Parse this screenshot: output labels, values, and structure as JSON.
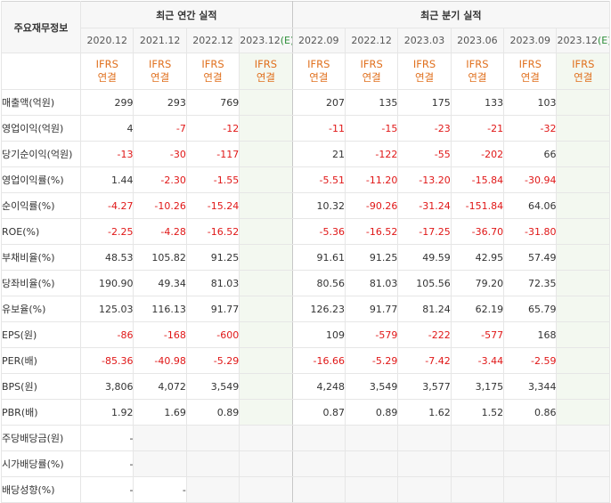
{
  "table": {
    "corner_label": "주요재무정보",
    "annual_group_label": "최근 연간 실적",
    "quarter_group_label": "최근 분기 실적",
    "annual_periods": [
      "2020.12",
      "2021.12",
      "2022.12"
    ],
    "annual_estimate_period": "2023.12",
    "quarter_periods": [
      "2022.09",
      "2022.12",
      "2023.03",
      "2023.06",
      "2023.09"
    ],
    "quarter_estimate_period": "2023.12",
    "estimate_marker": "(E)",
    "ifrs_line1": "IFRS",
    "ifrs_line2": "연결",
    "rows": [
      {
        "label": "매출액(억원)",
        "annual": [
          "299",
          "293",
          "769",
          ""
        ],
        "quarter": [
          "207",
          "135",
          "175",
          "133",
          "103",
          ""
        ]
      },
      {
        "label": "영업이익(억원)",
        "annual": [
          "4",
          "-7",
          "-12",
          ""
        ],
        "quarter": [
          "-11",
          "-15",
          "-23",
          "-21",
          "-32",
          ""
        ]
      },
      {
        "label": "당기순이익(억원)",
        "annual": [
          "-13",
          "-30",
          "-117",
          ""
        ],
        "quarter": [
          "21",
          "-122",
          "-55",
          "-202",
          "66",
          ""
        ]
      },
      {
        "label": "영업이익률(%)",
        "annual": [
          "1.44",
          "-2.30",
          "-1.55",
          ""
        ],
        "quarter": [
          "-5.51",
          "-11.20",
          "-13.20",
          "-15.84",
          "-30.94",
          ""
        ]
      },
      {
        "label": "순이익률(%)",
        "annual": [
          "-4.27",
          "-10.26",
          "-15.24",
          ""
        ],
        "quarter": [
          "10.32",
          "-90.26",
          "-31.24",
          "-151.84",
          "64.06",
          ""
        ]
      },
      {
        "label": "ROE(%)",
        "annual": [
          "-2.25",
          "-4.28",
          "-16.52",
          ""
        ],
        "quarter": [
          "-5.36",
          "-16.52",
          "-17.25",
          "-36.70",
          "-31.80",
          ""
        ]
      },
      {
        "label": "부채비율(%)",
        "annual": [
          "48.53",
          "105.82",
          "91.25",
          ""
        ],
        "quarter": [
          "91.61",
          "91.25",
          "49.59",
          "42.95",
          "57.49",
          ""
        ]
      },
      {
        "label": "당좌비율(%)",
        "annual": [
          "190.90",
          "49.34",
          "81.03",
          ""
        ],
        "quarter": [
          "80.56",
          "81.03",
          "105.56",
          "79.20",
          "72.35",
          ""
        ]
      },
      {
        "label": "유보율(%)",
        "annual": [
          "125.03",
          "116.13",
          "91.77",
          ""
        ],
        "quarter": [
          "126.23",
          "91.77",
          "81.24",
          "62.19",
          "65.79",
          ""
        ]
      },
      {
        "label": "EPS(원)",
        "annual": [
          "-86",
          "-168",
          "-600",
          ""
        ],
        "quarter": [
          "109",
          "-579",
          "-222",
          "-577",
          "168",
          ""
        ]
      },
      {
        "label": "PER(배)",
        "annual": [
          "-85.36",
          "-40.98",
          "-5.29",
          ""
        ],
        "quarter": [
          "-16.66",
          "-5.29",
          "-7.42",
          "-3.44",
          "-2.59",
          ""
        ]
      },
      {
        "label": "BPS(원)",
        "annual": [
          "3,806",
          "4,072",
          "3,549",
          ""
        ],
        "quarter": [
          "4,248",
          "3,549",
          "3,577",
          "3,175",
          "3,344",
          ""
        ]
      },
      {
        "label": "PBR(배)",
        "annual": [
          "1.92",
          "1.69",
          "0.89",
          ""
        ],
        "quarter": [
          "0.87",
          "0.89",
          "1.62",
          "1.52",
          "0.86",
          ""
        ]
      },
      {
        "label": "주당배당금(원)",
        "annual": [
          "-",
          "",
          "",
          ""
        ],
        "quarter": [
          "",
          "",
          "",
          "",
          "",
          ""
        ]
      },
      {
        "label": "시가배당률(%)",
        "annual": [
          "-",
          "",
          "",
          ""
        ],
        "quarter": [
          "",
          "",
          "",
          "",
          "",
          ""
        ]
      },
      {
        "label": "배당성향(%)",
        "annual": [
          "-",
          "-",
          "",
          ""
        ],
        "quarter": [
          "",
          "",
          "",
          "",
          "",
          ""
        ]
      }
    ]
  },
  "colors": {
    "negative": "#e01717",
    "ifrs": "#e0701e",
    "estimate": "#2e8f3a"
  }
}
